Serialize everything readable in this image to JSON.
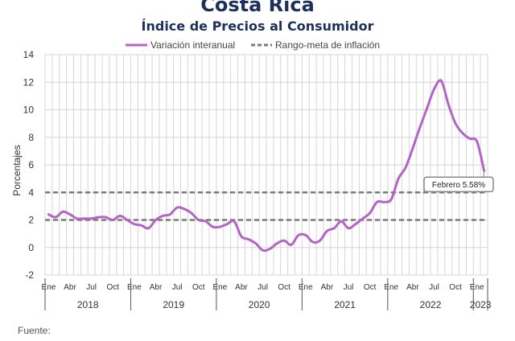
{
  "header": {
    "country": "Costa Rica",
    "title": "Índice de Precios al Consumidor"
  },
  "source_label": "Fuente:",
  "colors": {
    "series": "#b463c8",
    "target": "#7a7a7a",
    "title": "#1d2f5c",
    "grid": "#d6d6d6"
  },
  "chart_data": {
    "type": "line",
    "title": "Índice de Precios al Consumidor",
    "xlabel": "",
    "ylabel": "Porcentajes",
    "ylim": [
      -2,
      14
    ],
    "yticks": [
      -2,
      0,
      2,
      4,
      6,
      8,
      10,
      12,
      14
    ],
    "grid": true,
    "legend_position": "top",
    "month_tick_labels": [
      "Ene",
      "Abr",
      "Jul",
      "Oct"
    ],
    "years": [
      "2018",
      "2019",
      "2020",
      "2021",
      "2022",
      "2023"
    ],
    "x": [
      "2018-01",
      "2018-02",
      "2018-03",
      "2018-04",
      "2018-05",
      "2018-06",
      "2018-07",
      "2018-08",
      "2018-09",
      "2018-10",
      "2018-11",
      "2018-12",
      "2019-01",
      "2019-02",
      "2019-03",
      "2019-04",
      "2019-05",
      "2019-06",
      "2019-07",
      "2019-08",
      "2019-09",
      "2019-10",
      "2019-11",
      "2019-12",
      "2020-01",
      "2020-02",
      "2020-03",
      "2020-04",
      "2020-05",
      "2020-06",
      "2020-07",
      "2020-08",
      "2020-09",
      "2020-10",
      "2020-11",
      "2020-12",
      "2021-01",
      "2021-02",
      "2021-03",
      "2021-04",
      "2021-05",
      "2021-06",
      "2021-07",
      "2021-08",
      "2021-09",
      "2021-10",
      "2021-11",
      "2021-12",
      "2022-01",
      "2022-02",
      "2022-03",
      "2022-04",
      "2022-05",
      "2022-06",
      "2022-07",
      "2022-08",
      "2022-09",
      "2022-10",
      "2022-11",
      "2022-12",
      "2023-01",
      "2023-02"
    ],
    "series": [
      {
        "name": "Variación interanual",
        "style": "solid",
        "values": [
          2.4,
          2.2,
          2.6,
          2.4,
          2.1,
          2.1,
          2.1,
          2.2,
          2.2,
          2.0,
          2.3,
          2.0,
          1.7,
          1.6,
          1.4,
          2.0,
          2.3,
          2.4,
          2.9,
          2.8,
          2.5,
          2.0,
          1.9,
          1.5,
          1.5,
          1.7,
          1.9,
          0.8,
          0.6,
          0.3,
          -0.2,
          -0.1,
          0.3,
          0.5,
          0.2,
          0.9,
          0.9,
          0.4,
          0.5,
          1.2,
          1.4,
          1.9,
          1.4,
          1.7,
          2.1,
          2.5,
          3.3,
          3.3,
          3.5,
          5.0,
          5.8,
          7.2,
          8.7,
          10.1,
          11.5,
          12.1,
          10.4,
          9.0,
          8.3,
          7.9,
          7.7,
          5.58
        ]
      },
      {
        "name": "Rango-meta de inflación",
        "style": "dashed",
        "lines": [
          2,
          4
        ]
      }
    ],
    "annotation": {
      "text": "Febrero 5.58%",
      "x": "2023-02",
      "y": 5.58
    }
  }
}
